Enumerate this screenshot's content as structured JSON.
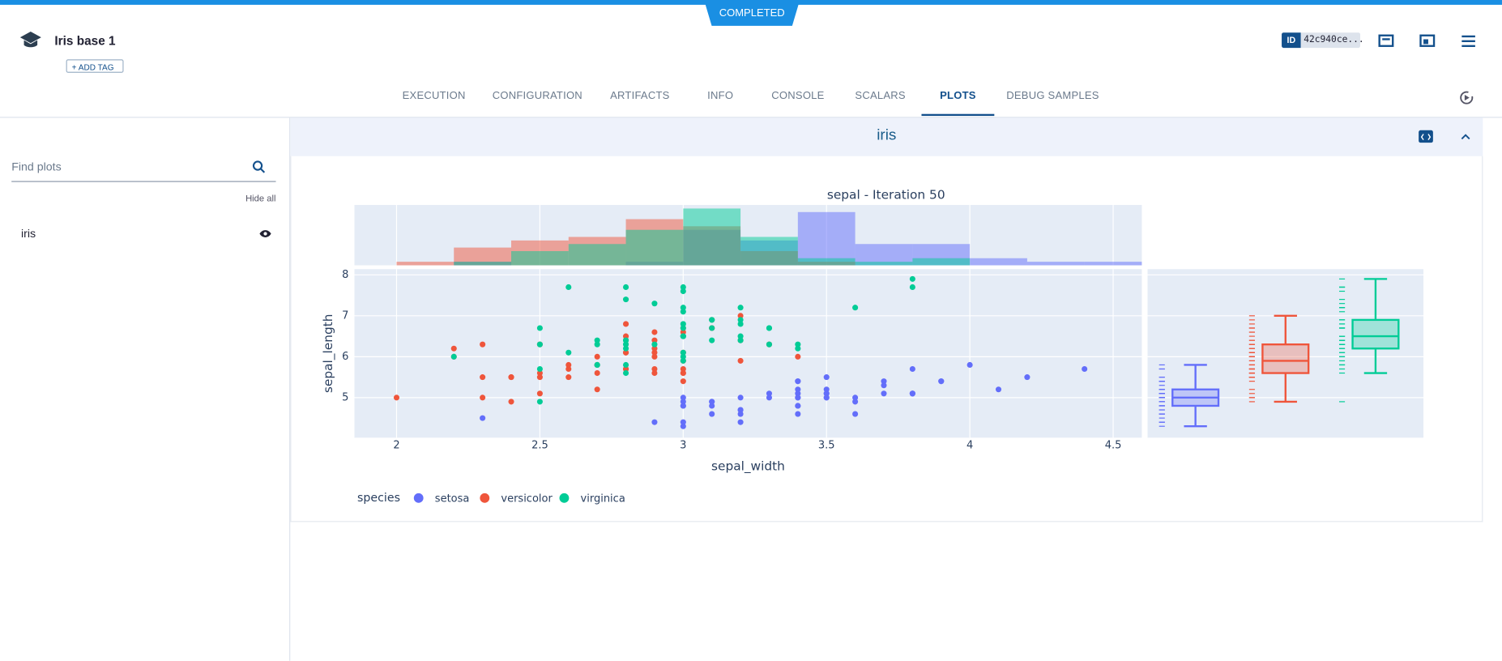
{
  "status": "COMPLETED",
  "header": {
    "title": "Iris base 1",
    "add_tag": "ADD TAG",
    "id_label": "ID",
    "id_value": "42c940ce..."
  },
  "tabs": [
    "EXECUTION",
    "CONFIGURATION",
    "ARTIFACTS",
    "INFO",
    "CONSOLE",
    "SCALARS",
    "PLOTS",
    "DEBUG SAMPLES"
  ],
  "active_tab": "PLOTS",
  "sidebar": {
    "search_placeholder": "Find plots",
    "hide_all": "Hide all",
    "items": [
      "iris"
    ]
  },
  "section_title": "iris",
  "chart_data": {
    "type": "scatter",
    "title": "sepal - Iteration 50",
    "x_label": "sepal_width",
    "y_label": "sepal_length",
    "legend_title": "species",
    "xlim": [
      1.853,
      4.6
    ],
    "xticks": [
      2,
      2.5,
      3,
      3.5,
      4,
      4.5
    ],
    "ylim": [
      4.02,
      8.14
    ],
    "yticks": [
      5,
      6,
      7,
      8
    ],
    "grid": true,
    "hist_bins": [
      2.0,
      2.2,
      2.4,
      2.6,
      2.8,
      3.0,
      3.2,
      3.4,
      3.6,
      3.8,
      4.0,
      4.2,
      4.4,
      4.6
    ],
    "hist_ylim": [
      0,
      17
    ],
    "series": [
      {
        "name": "setosa",
        "color": "#636efa",
        "x": [
          3.5,
          3.0,
          3.2,
          3.1,
          3.6,
          3.9,
          3.4,
          3.4,
          2.9,
          3.1,
          3.7,
          3.4,
          3.0,
          3.0,
          4.0,
          4.4,
          3.9,
          3.5,
          3.8,
          3.8,
          3.4,
          3.7,
          3.6,
          3.3,
          3.4,
          3.0,
          3.4,
          3.5,
          3.4,
          3.2,
          3.1,
          3.4,
          4.1,
          4.2,
          3.1,
          3.2,
          3.5,
          3.6,
          3.0,
          3.4,
          3.5,
          2.3,
          3.2,
          3.5,
          3.8,
          3.0,
          3.8,
          3.2,
          3.7,
          3.3
        ],
        "values": [
          5.1,
          4.9,
          4.7,
          4.6,
          5.0,
          5.4,
          4.6,
          5.0,
          4.4,
          4.9,
          5.4,
          4.8,
          4.8,
          4.3,
          5.8,
          5.7,
          5.4,
          5.1,
          5.7,
          5.1,
          5.4,
          5.1,
          4.6,
          5.1,
          4.8,
          5.0,
          5.0,
          5.2,
          5.2,
          4.7,
          4.8,
          5.4,
          5.2,
          5.5,
          4.9,
          5.0,
          5.5,
          4.9,
          4.4,
          5.1,
          5.0,
          4.5,
          4.4,
          5.0,
          5.1,
          4.8,
          5.1,
          4.6,
          5.3,
          5.0
        ],
        "hist_counts": [
          0,
          1,
          0,
          0,
          1,
          10,
          7,
          15,
          6,
          6,
          2,
          1,
          1
        ],
        "box": {
          "min": 4.3,
          "q1": 4.8,
          "median": 5.0,
          "q3": 5.2,
          "max": 5.8
        }
      },
      {
        "name": "versicolor",
        "color": "#ef553b",
        "x": [
          3.2,
          3.2,
          3.1,
          2.3,
          2.8,
          2.8,
          3.3,
          2.4,
          2.9,
          2.7,
          2.0,
          3.0,
          2.2,
          2.9,
          2.9,
          3.1,
          3.0,
          2.7,
          2.2,
          2.5,
          3.2,
          2.8,
          2.5,
          2.8,
          2.9,
          3.0,
          2.8,
          3.0,
          2.9,
          2.6,
          2.4,
          2.4,
          2.7,
          2.7,
          3.0,
          3.4,
          3.1,
          2.3,
          3.0,
          2.5,
          2.6,
          3.0,
          2.6,
          2.3,
          2.7,
          3.0,
          2.9,
          2.9,
          2.5,
          2.8
        ],
        "values": [
          7.0,
          6.4,
          6.9,
          5.5,
          6.5,
          5.7,
          6.3,
          4.9,
          6.6,
          5.2,
          5.0,
          5.9,
          6.0,
          6.1,
          5.6,
          6.7,
          5.6,
          5.8,
          6.2,
          5.6,
          5.9,
          6.1,
          6.3,
          6.1,
          6.4,
          6.6,
          6.8,
          6.7,
          6.0,
          5.7,
          5.5,
          5.5,
          5.8,
          6.0,
          5.4,
          6.0,
          6.7,
          6.3,
          5.6,
          5.5,
          5.5,
          6.1,
          5.8,
          5.0,
          5.6,
          5.7,
          5.7,
          6.2,
          5.1,
          5.7
        ],
        "hist_counts": [
          1,
          5,
          7,
          8,
          13,
          11,
          4,
          1,
          0,
          0,
          0,
          0,
          0
        ],
        "box": {
          "min": 4.9,
          "q1": 5.6,
          "median": 5.9,
          "q3": 6.3,
          "max": 7.0
        }
      },
      {
        "name": "virginica",
        "color": "#00cc96",
        "x": [
          3.3,
          2.7,
          3.0,
          2.9,
          3.0,
          3.0,
          2.5,
          2.9,
          2.5,
          3.6,
          3.2,
          2.7,
          3.0,
          2.5,
          2.8,
          3.2,
          3.0,
          3.8,
          2.6,
          2.2,
          3.2,
          2.8,
          2.8,
          2.7,
          3.3,
          3.2,
          2.8,
          3.0,
          2.8,
          3.0,
          2.8,
          3.8,
          2.8,
          2.8,
          2.6,
          3.0,
          3.4,
          3.1,
          3.0,
          3.1,
          3.1,
          3.1,
          2.7,
          3.2,
          3.3,
          3.0,
          2.5,
          3.0,
          3.4,
          3.0
        ],
        "values": [
          6.3,
          5.8,
          7.1,
          6.3,
          6.5,
          7.6,
          4.9,
          7.3,
          6.7,
          7.2,
          6.5,
          6.4,
          6.8,
          5.7,
          5.8,
          6.4,
          6.5,
          7.7,
          7.7,
          6.0,
          6.9,
          5.6,
          7.7,
          6.3,
          6.7,
          7.2,
          6.2,
          6.1,
          6.4,
          7.2,
          7.4,
          7.9,
          6.4,
          6.3,
          6.1,
          7.7,
          6.3,
          6.4,
          6.0,
          6.9,
          6.7,
          6.9,
          5.8,
          6.8,
          6.7,
          6.7,
          6.3,
          6.5,
          6.2,
          5.9
        ],
        "hist_counts": [
          0,
          1,
          4,
          6,
          10,
          16,
          8,
          2,
          1,
          2,
          0,
          0,
          0
        ],
        "box": {
          "min": 5.6,
          "q1": 6.2,
          "median": 6.5,
          "q3": 6.9,
          "max": 7.9
        }
      }
    ]
  }
}
